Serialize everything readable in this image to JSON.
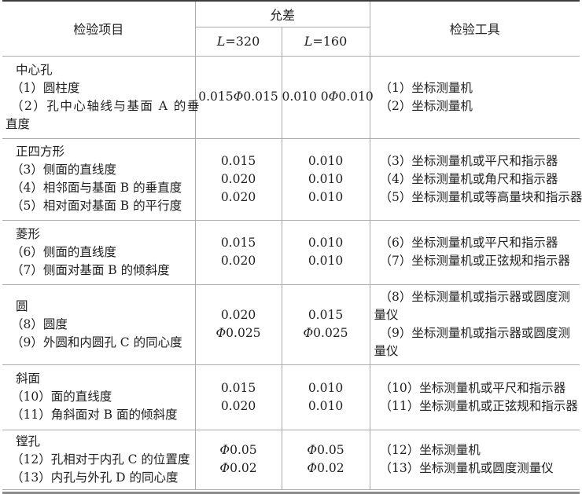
{
  "colors": {
    "rule_dark": "#3d3d3d",
    "rule_light": "#ababab",
    "rule_bottom_thick": "#8c8c8c",
    "text": "#1f1f1f"
  },
  "table": {
    "header": {
      "col_item": "检验项目",
      "col_tolerance": "允差",
      "col_tools": "检验工具",
      "sub_cols": [
        {
          "letter": "L",
          "rest": "=320"
        },
        {
          "letter": "L",
          "rest": "=160"
        }
      ]
    },
    "rows": [
      {
        "item_lines": [
          "中心孔",
          "（1）圆柱度",
          "（2）孔中心轴线与基面 A 的垂",
          "直度"
        ],
        "tol_l320": [
          "0.015Φ0.015"
        ],
        "tol_l160": [
          "0.010 0Φ0.010"
        ],
        "tool_lines": [
          "（1）坐标测量机",
          "（2）坐标测量机"
        ]
      },
      {
        "item_lines": [
          "正四方形",
          "（3）侧面的直线度",
          "（4）相邻面与基面 B 的垂直度",
          "（5）相对面对基面 B 的平行度"
        ],
        "tol_l320": [
          "0.015",
          "0.020",
          "0.020"
        ],
        "tol_l160": [
          "0.010",
          "0.010",
          "0.010"
        ],
        "tool_lines": [
          "（3）坐标测量机或平尺和指示器",
          "（4）坐标测量机或角尺和指示器",
          "（5）坐标测量机或等高量块和指示器"
        ]
      },
      {
        "item_lines": [
          "菱形",
          "（6）侧面的直线度",
          "（7）侧面对基面 B 的倾斜度"
        ],
        "tol_l320": [
          "0.015",
          "0.020"
        ],
        "tol_l160": [
          "0.010",
          "0.010"
        ],
        "tool_lines": [
          "（6）坐标测量机或平尺和指示器",
          "（7）坐标测量机或正弦规和指示器"
        ]
      },
      {
        "item_lines": [
          "圆",
          "（8）圆度",
          "（9）外圆和内圆孔 C 的同心度"
        ],
        "tol_l320": [
          "0.020",
          "Φ0.025"
        ],
        "tol_l160": [
          "0.015",
          "Φ0.025"
        ],
        "tool_lines": [
          "（8）坐标测量机或指示器或圆度测",
          "量仪",
          "（9）坐标测量机或指示器或圆度测",
          "量仪"
        ]
      },
      {
        "item_lines": [
          "斜面",
          "（10）面的直线度",
          "（11）角斜面对 B 面的倾斜度"
        ],
        "tol_l320": [
          "0.015",
          "0.020"
        ],
        "tol_l160": [
          "0.010",
          "0.010"
        ],
        "tool_lines": [
          "（10）坐标测量机或平尺和指示器",
          "（11）坐标测量机或正弦规和指示器"
        ]
      },
      {
        "item_lines": [
          "镗孔",
          "（12）孔相对于内孔 C 的位置度",
          "（13）内孔与外孔 D 的同心度"
        ],
        "tol_l320": [
          "Φ0.05",
          "Φ0.02"
        ],
        "tol_l160": [
          "Φ0.05",
          "Φ0.02"
        ],
        "tool_lines": [
          "（12）坐标测量机",
          "（13）坐标测量机或圆度测量仪"
        ]
      }
    ]
  }
}
